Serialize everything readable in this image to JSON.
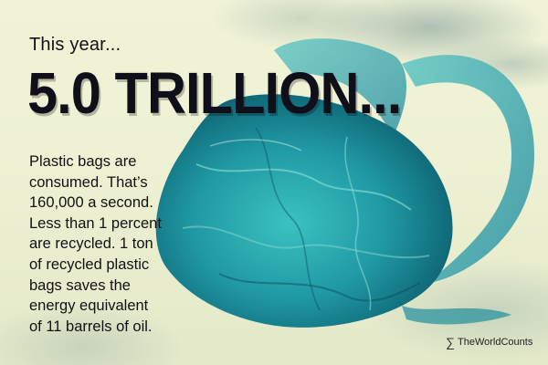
{
  "intro": "This year...",
  "headline": "5.0 TRILLION...",
  "body_lines": [
    "Plastic bags are",
    "consumed. That’s",
    "160,000 a second.",
    "Less than 1 percent",
    "are recycled. 1 ton",
    "of recycled plastic",
    "bags saves the",
    "energy equivalent",
    "of 11 barrels of oil."
  ],
  "brand": {
    "icon": "sigma-logo-icon",
    "name": "TheWorldCounts"
  },
  "colors": {
    "bag": "#2aa6a8",
    "bag_dark": "#0f5f6f",
    "headline": "#0f0f1a"
  }
}
